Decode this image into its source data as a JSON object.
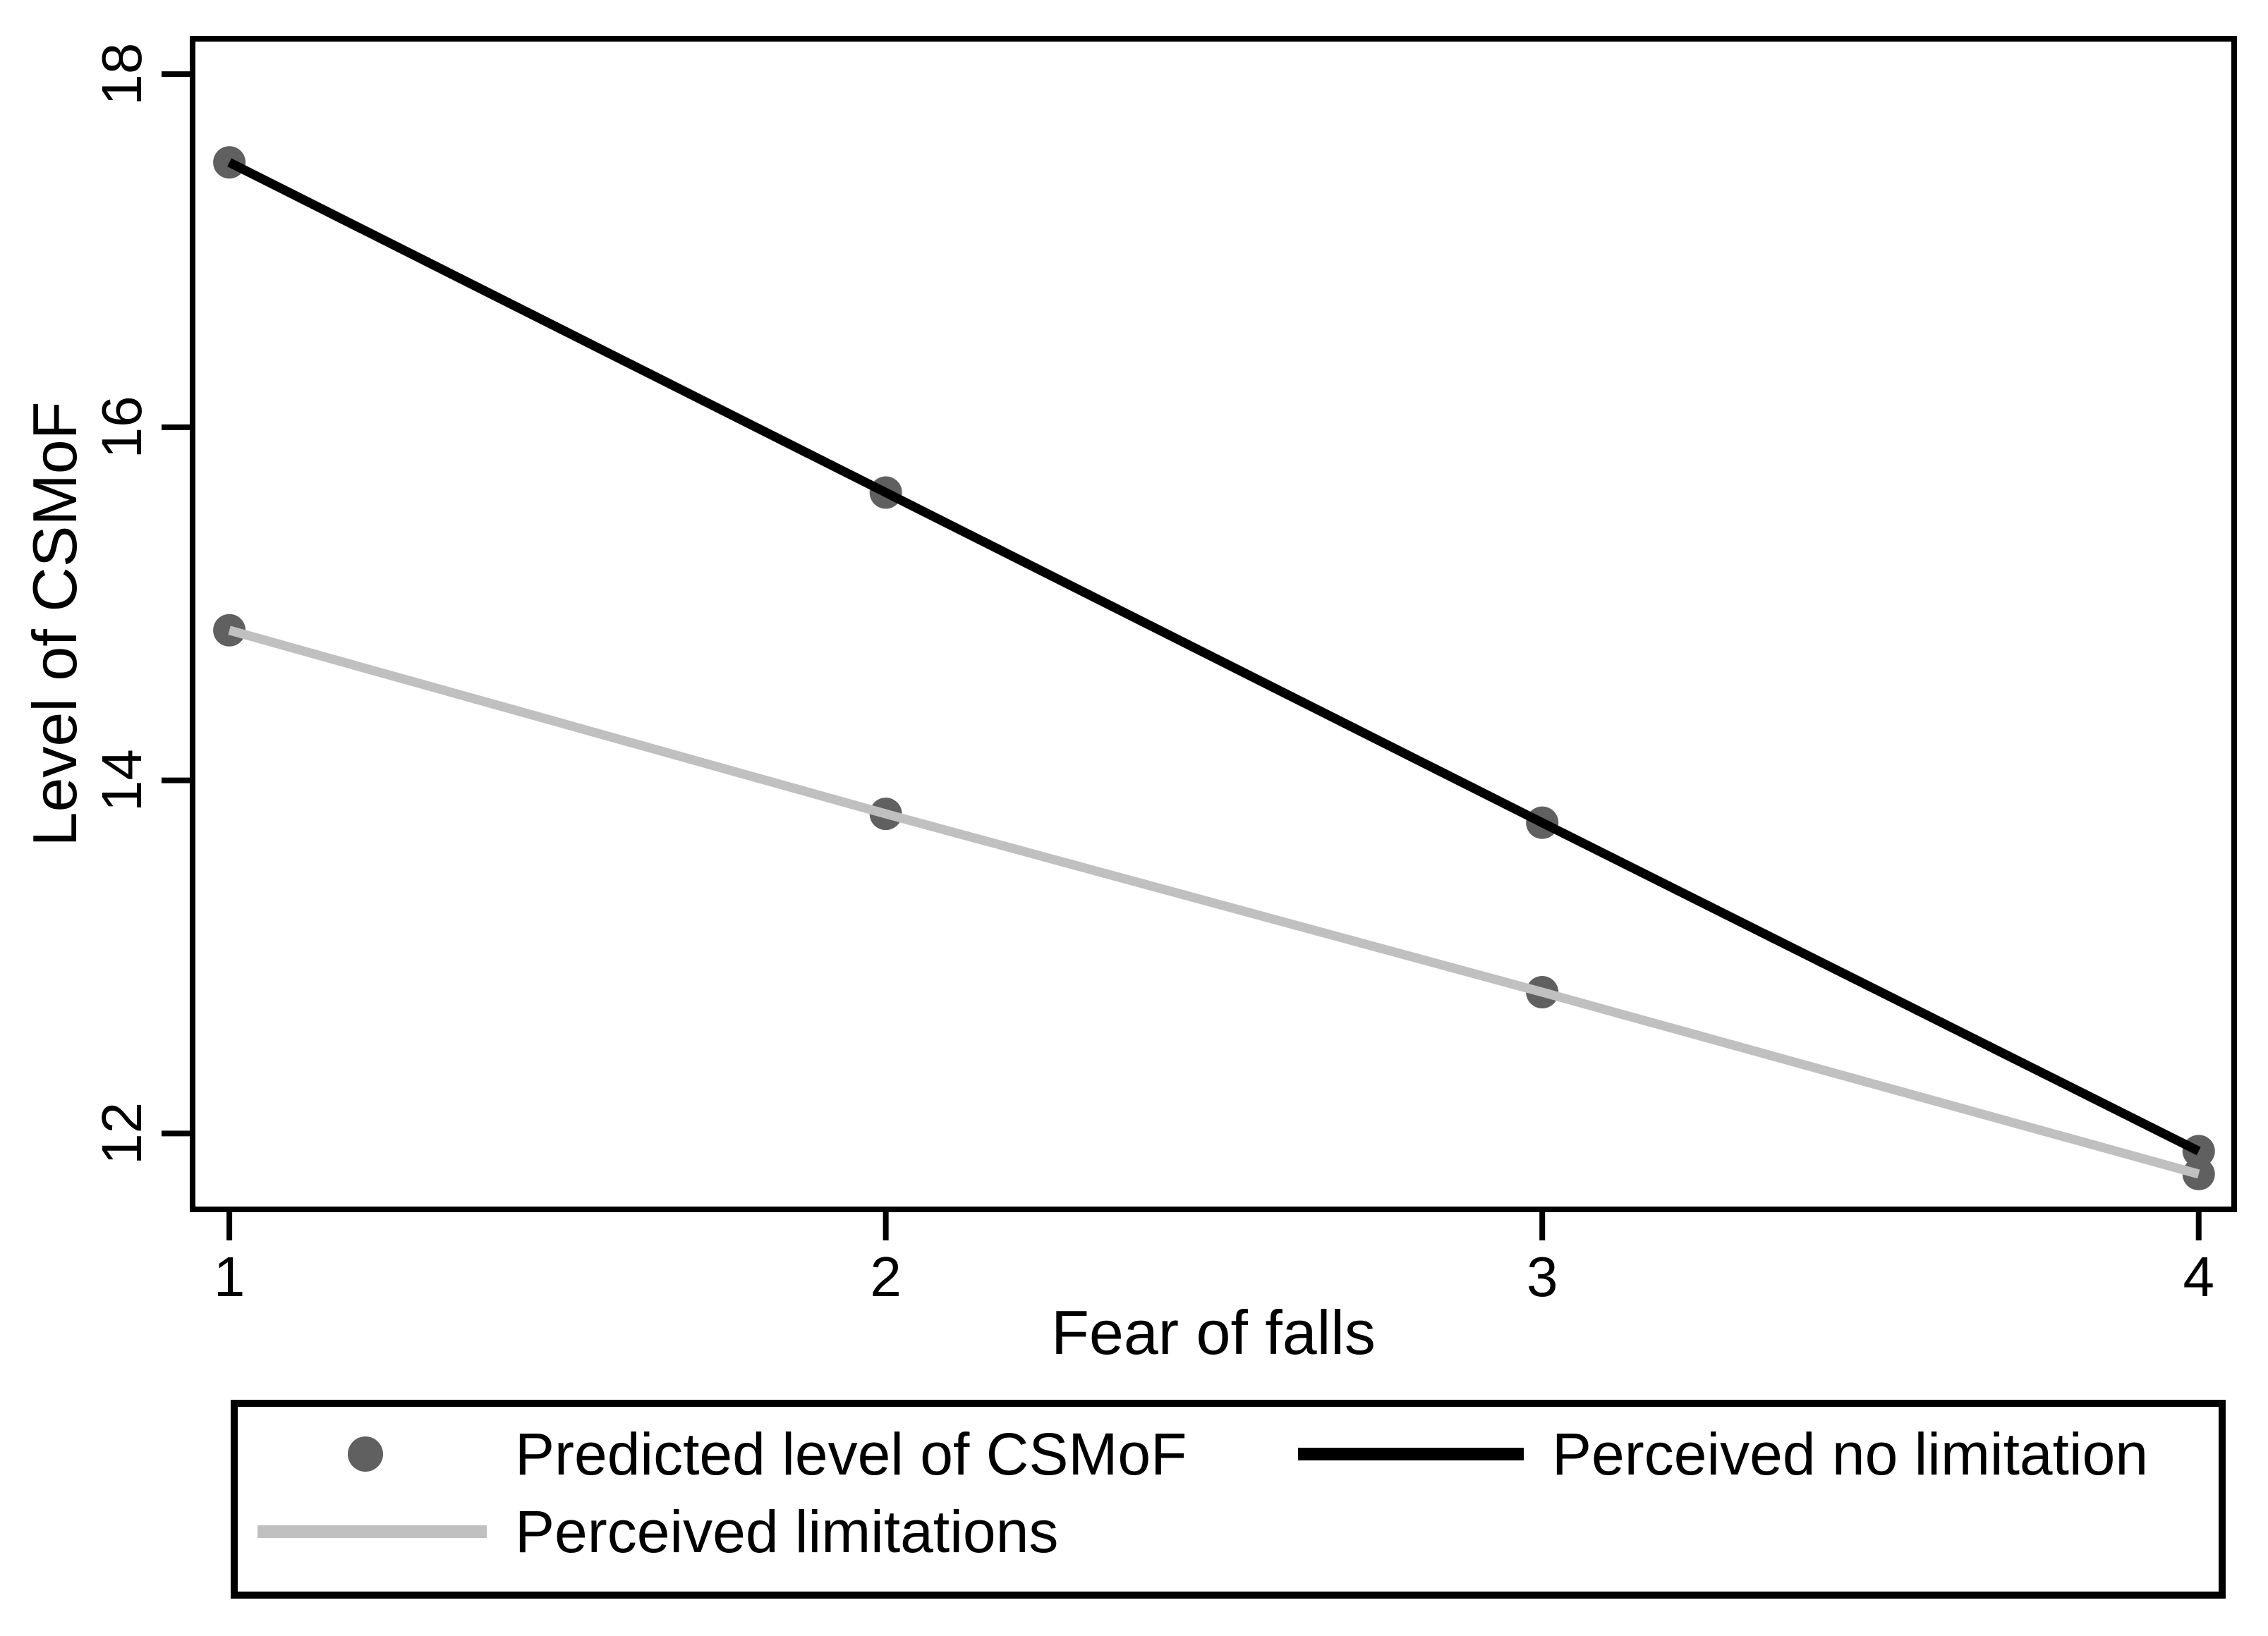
{
  "page": {
    "background": "#ffffff"
  },
  "chart_data": {
    "type": "line",
    "title": "",
    "xlabel": "Fear of falls",
    "ylabel": "Level of CSMoF",
    "x": [
      1,
      2,
      3,
      4
    ],
    "series": [
      {
        "name": "Perceived no limitation",
        "color": "#000000",
        "values": [
          17.5,
          15.63,
          13.76,
          11.9
        ]
      },
      {
        "name": "Perceived limitations",
        "color": "#c0c0c0",
        "values": [
          14.85,
          13.81,
          12.8,
          11.77
        ]
      }
    ],
    "marker": {
      "name": "Predicted level of CSMoF",
      "color": "#606060"
    },
    "xticks": [
      1,
      2,
      3,
      4
    ],
    "yticks": [
      12,
      14,
      16,
      18
    ],
    "xlim": [
      0.944,
      4.054
    ],
    "ylim": [
      11.57,
      18.2
    ],
    "grid": false,
    "frame": true,
    "legend_position": "bottom-box"
  }
}
